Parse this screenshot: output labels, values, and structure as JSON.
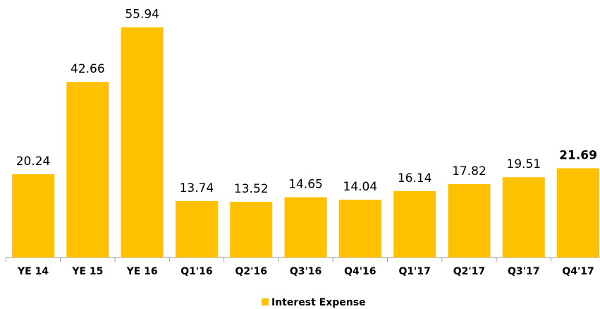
{
  "chart_data": {
    "type": "bar",
    "categories": [
      "YE 14",
      "YE 15",
      "YE 16",
      "Q1'16",
      "Q2'16",
      "Q3'16",
      "Q4'16",
      "Q1'17",
      "Q2'17",
      "Q3'17",
      "Q4'17"
    ],
    "series": [
      {
        "name": "Interest Expense",
        "color": "#ffc000",
        "values": [
          20.24,
          42.66,
          55.94,
          13.74,
          13.52,
          14.65,
          14.04,
          16.14,
          17.82,
          19.51,
          21.69
        ]
      }
    ],
    "ylim": [
      0,
      60
    ],
    "legend": "bottom"
  }
}
